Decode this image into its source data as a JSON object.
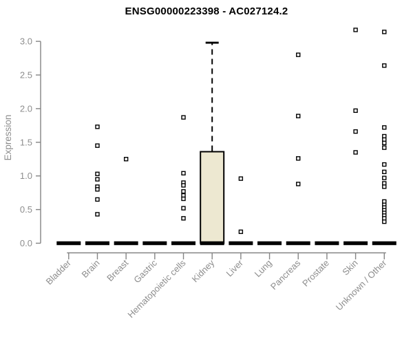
{
  "chart_data": {
    "type": "boxplot",
    "title": "ENSG00000223398 - AC027124.2",
    "ylabel": "Expression",
    "xlabel": "",
    "ylim": [
      0,
      3.2
    ],
    "yticks": [
      0.0,
      0.5,
      1.0,
      1.5,
      2.0,
      2.5,
      3.0
    ],
    "grid": false,
    "legend": false,
    "categories": [
      "Bladder",
      "Brain",
      "Breast",
      "Gastric",
      "Hematopoietic cells",
      "Kidney",
      "Liver",
      "Lung",
      "Pancreas",
      "Prostate",
      "Skin",
      "Unknown / Other"
    ],
    "boxes": [
      {
        "category": "Bladder",
        "q1": 0,
        "median": 0,
        "q3": 0,
        "whisker_low": 0,
        "whisker_high": 0,
        "outliers": []
      },
      {
        "category": "Brain",
        "q1": 0,
        "median": 0,
        "q3": 0,
        "whisker_low": 0,
        "whisker_high": 0,
        "outliers": [
          1.73,
          1.45,
          1.03,
          0.95,
          0.84,
          0.8,
          0.65,
          0.43
        ]
      },
      {
        "category": "Breast",
        "q1": 0,
        "median": 0,
        "q3": 0,
        "whisker_low": 0,
        "whisker_high": 0,
        "outliers": [
          1.25
        ]
      },
      {
        "category": "Gastric",
        "q1": 0,
        "median": 0,
        "q3": 0,
        "whisker_low": 0,
        "whisker_high": 0,
        "outliers": []
      },
      {
        "category": "Hematopoietic cells",
        "q1": 0,
        "median": 0,
        "q3": 0,
        "whisker_low": 0,
        "whisker_high": 0,
        "outliers": [
          1.87,
          1.04,
          0.9,
          0.86,
          0.77,
          0.71,
          0.66,
          0.52,
          0.37
        ]
      },
      {
        "category": "Kidney",
        "q1": 0,
        "median": 0,
        "q3": 1.36,
        "whisker_low": 0,
        "whisker_high": 2.98,
        "outliers": []
      },
      {
        "category": "Liver",
        "q1": 0,
        "median": 0,
        "q3": 0,
        "whisker_low": 0,
        "whisker_high": 0,
        "outliers": [
          0.96,
          0.17
        ]
      },
      {
        "category": "Lung",
        "q1": 0,
        "median": 0,
        "q3": 0,
        "whisker_low": 0,
        "whisker_high": 0,
        "outliers": []
      },
      {
        "category": "Pancreas",
        "q1": 0,
        "median": 0,
        "q3": 0,
        "whisker_low": 0,
        "whisker_high": 0,
        "outliers": [
          2.8,
          1.89,
          1.26,
          0.88
        ]
      },
      {
        "category": "Prostate",
        "q1": 0,
        "median": 0,
        "q3": 0,
        "whisker_low": 0,
        "whisker_high": 0,
        "outliers": []
      },
      {
        "category": "Skin",
        "q1": 0,
        "median": 0,
        "q3": 0,
        "whisker_low": 0,
        "whisker_high": 0,
        "outliers": [
          3.17,
          1.97,
          1.66,
          1.35
        ]
      },
      {
        "category": "Unknown / Other",
        "q1": 0,
        "median": 0,
        "q3": 0,
        "whisker_low": 0,
        "whisker_high": 0,
        "outliers": [
          3.14,
          2.64,
          1.72,
          1.59,
          1.54,
          1.49,
          1.42,
          1.17,
          1.06,
          0.97,
          0.89,
          0.84,
          0.62,
          0.57,
          0.53,
          0.49,
          0.45,
          0.41,
          0.37,
          0.32
        ]
      }
    ],
    "colors": {
      "box_fill": "#ede8d1",
      "box_border": "#000000",
      "median": "#000000",
      "outlier_fill": "#ffffff",
      "outlier_border": "#000000",
      "axis_line": "#848484",
      "tick_label": "#8d8d8d",
      "title": "#000000"
    }
  }
}
